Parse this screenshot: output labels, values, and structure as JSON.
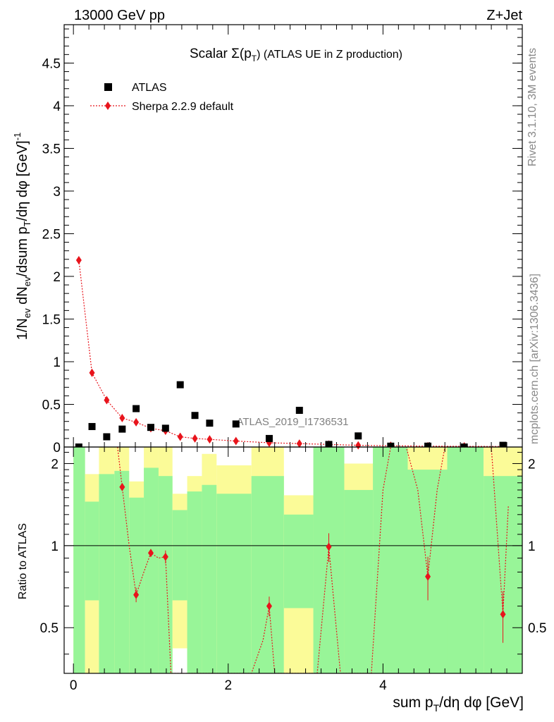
{
  "header": {
    "energy": "13000 GeV pp",
    "process": "Z+Jet",
    "title_main": "Scalar Σ(p",
    "title_sub": "T",
    "title_rest": ") (ATLAS UE in Z production)",
    "watermark": "ATLAS_2019_I1736531"
  },
  "side_labels": {
    "rivet": "Rivet 3.1.10,  3M events",
    "mcplots": "mcplots.cern.ch [arXiv:1306.3436]"
  },
  "axes": {
    "ylabel_top": "1/N_ev dN_ev/dsum p_T/dη dφ [GeV]^-1",
    "ylabel_ratio": "Ratio to ATLAS",
    "xlabel": "sum p_T/dη dφ [GeV]"
  },
  "legend": {
    "entries": [
      {
        "label": "ATLAS",
        "marker": "square",
        "color": "#000000"
      },
      {
        "label": "Sherpa 2.2.9 default",
        "marker": "diamond",
        "color": "#e8141c"
      }
    ]
  },
  "colors": {
    "band_inner": "#98f598",
    "band_outer": "#fbfb98",
    "model": "#e8141c",
    "data": "#000000"
  },
  "chart_data": [
    {
      "type": "scatter",
      "panel": "main",
      "xlim": [
        -0.12,
        5.8
      ],
      "ylim": [
        0,
        4.95
      ],
      "yticks": [
        0,
        0.5,
        1,
        1.5,
        2,
        2.5,
        3,
        3.5,
        4,
        4.5
      ],
      "ytick_labels": [
        "0",
        "0.5",
        "1",
        "1.5",
        "2",
        "2.5",
        "3",
        "3.5",
        "4",
        "4.5"
      ],
      "series": [
        {
          "name": "ATLAS",
          "x": [
            0.07,
            0.24,
            0.43,
            0.63,
            0.81,
            1.0,
            1.19,
            1.38,
            1.57,
            1.76,
            2.1,
            2.53,
            2.92,
            3.3,
            3.68,
            4.1,
            4.58,
            5.05,
            5.55
          ],
          "y": [
            0.0,
            0.24,
            0.12,
            0.21,
            0.45,
            0.23,
            0.22,
            0.73,
            0.37,
            0.28,
            0.27,
            0.1,
            0.43,
            0.03,
            0.13,
            0.01,
            0.01,
            0.0,
            0.02
          ]
        },
        {
          "name": "Sherpa 2.2.9 default",
          "x": [
            0.07,
            0.24,
            0.43,
            0.63,
            0.81,
            1.0,
            1.19,
            1.38,
            1.57,
            1.76,
            2.1,
            2.53,
            2.92,
            3.3,
            3.68,
            4.1,
            4.58,
            5.05,
            5.55
          ],
          "y": [
            2.19,
            0.87,
            0.55,
            0.34,
            0.29,
            0.22,
            0.19,
            0.12,
            0.1,
            0.09,
            0.07,
            0.05,
            0.04,
            0.03,
            0.02,
            0.015,
            0.01,
            0.008,
            0.006
          ]
        }
      ]
    },
    {
      "type": "line",
      "panel": "ratio",
      "xlim": [
        -0.12,
        5.8
      ],
      "ylim": [
        0.34,
        2.3
      ],
      "yticks": [
        0.5,
        1,
        2
      ],
      "ytick_labels": [
        "0.5",
        "1",
        "2"
      ],
      "xticks": [
        0,
        2,
        4
      ],
      "xtick_labels": [
        "0",
        "2",
        "4"
      ],
      "bins": [
        {
          "lo": 0.0,
          "hi": 0.15,
          "in_lo": 0.34,
          "in_hi": 2.3,
          "out_lo": 0.34,
          "out_hi": 2.3
        },
        {
          "lo": 0.15,
          "hi": 0.33,
          "in_lo": 0.63,
          "in_hi": 1.45,
          "out_lo": 0.34,
          "out_hi": 1.83
        },
        {
          "lo": 0.33,
          "hi": 0.53,
          "in_lo": 0.34,
          "in_hi": 1.83,
          "out_lo": 0.34,
          "out_hi": 2.3
        },
        {
          "lo": 0.53,
          "hi": 0.72,
          "in_lo": 0.34,
          "in_hi": 1.88,
          "out_lo": 0.34,
          "out_hi": 2.3
        },
        {
          "lo": 0.72,
          "hi": 0.91,
          "in_lo": 0.34,
          "in_hi": 1.5,
          "out_lo": 0.34,
          "out_hi": 1.72
        },
        {
          "lo": 0.91,
          "hi": 1.1,
          "in_lo": 0.34,
          "in_hi": 1.93,
          "out_lo": 0.34,
          "out_hi": 2.3
        },
        {
          "lo": 1.1,
          "hi": 1.28,
          "in_lo": 0.34,
          "in_hi": 1.8,
          "out_lo": 0.34,
          "out_hi": 2.3
        },
        {
          "lo": 1.28,
          "hi": 1.47,
          "in_lo": 0.63,
          "in_hi": 1.35,
          "out_lo": 0.42,
          "out_hi": 1.55
        },
        {
          "lo": 1.47,
          "hi": 1.66,
          "in_lo": 0.34,
          "in_hi": 1.58,
          "out_lo": 0.34,
          "out_hi": 1.8
        },
        {
          "lo": 1.66,
          "hi": 1.85,
          "in_lo": 0.34,
          "in_hi": 1.67,
          "out_lo": 0.34,
          "out_hi": 2.17
        },
        {
          "lo": 1.85,
          "hi": 2.3,
          "in_lo": 0.34,
          "in_hi": 1.55,
          "out_lo": 0.34,
          "out_hi": 1.97
        },
        {
          "lo": 2.3,
          "hi": 2.72,
          "in_lo": 0.34,
          "in_hi": 1.8,
          "out_lo": 0.34,
          "out_hi": 2.3
        },
        {
          "lo": 2.72,
          "hi": 3.1,
          "in_lo": 0.59,
          "in_hi": 1.3,
          "out_lo": 0.34,
          "out_hi": 1.53
        },
        {
          "lo": 3.1,
          "hi": 3.5,
          "in_lo": 0.34,
          "in_hi": 2.3,
          "out_lo": 0.34,
          "out_hi": 2.3
        },
        {
          "lo": 3.5,
          "hi": 3.87,
          "in_lo": 0.34,
          "in_hi": 1.6,
          "out_lo": 0.34,
          "out_hi": 2.0
        },
        {
          "lo": 3.87,
          "hi": 4.32,
          "in_lo": 0.34,
          "in_hi": 2.3,
          "out_lo": 0.34,
          "out_hi": 2.3
        },
        {
          "lo": 4.32,
          "hi": 4.83,
          "in_lo": 0.34,
          "in_hi": 1.9,
          "out_lo": 0.34,
          "out_hi": 2.3
        },
        {
          "lo": 4.83,
          "hi": 5.3,
          "in_lo": 0.34,
          "in_hi": 2.3,
          "out_lo": 0.34,
          "out_hi": 2.3
        },
        {
          "lo": 5.3,
          "hi": 5.8,
          "in_lo": 0.34,
          "in_hi": 1.8,
          "out_lo": 0.34,
          "out_hi": 2.3
        }
      ],
      "ratio_points": [
        {
          "x": 0.63,
          "y": 1.64,
          "err": 0.04
        },
        {
          "x": 0.81,
          "y": 0.66,
          "err": 0.04
        },
        {
          "x": 1.0,
          "y": 0.94,
          "err": 0.03
        },
        {
          "x": 1.19,
          "y": 0.91,
          "err": 0.05
        },
        {
          "x": 2.53,
          "y": 0.6,
          "err": 0.05
        },
        {
          "x": 3.3,
          "y": 0.99,
          "err": 0.12
        },
        {
          "x": 4.58,
          "y": 0.77,
          "err": 0.14
        },
        {
          "x": 5.55,
          "y": 0.56,
          "err": 0.12
        }
      ],
      "ratio_curve": [
        [
          0.57,
          2.3
        ],
        [
          0.63,
          1.64
        ],
        [
          0.72,
          1.0
        ],
        [
          0.81,
          0.66
        ],
        [
          0.91,
          0.8
        ],
        [
          1.0,
          0.94
        ],
        [
          1.1,
          0.9
        ],
        [
          1.19,
          0.91
        ],
        [
          1.26,
          0.34
        ],
        [
          2.3,
          0.34
        ],
        [
          2.45,
          0.45
        ],
        [
          2.53,
          0.6
        ],
        [
          2.6,
          0.34
        ],
        [
          3.15,
          0.34
        ],
        [
          3.3,
          0.99
        ],
        [
          3.45,
          0.34
        ],
        [
          3.85,
          0.34
        ],
        [
          4.0,
          1.6
        ],
        [
          4.1,
          2.3
        ],
        [
          4.3,
          2.3
        ],
        [
          4.45,
          1.6
        ],
        [
          4.58,
          0.77
        ],
        [
          4.7,
          1.6
        ],
        [
          4.8,
          2.3
        ],
        [
          5.4,
          2.3
        ],
        [
          5.55,
          0.56
        ],
        [
          5.62,
          1.4
        ]
      ]
    }
  ]
}
